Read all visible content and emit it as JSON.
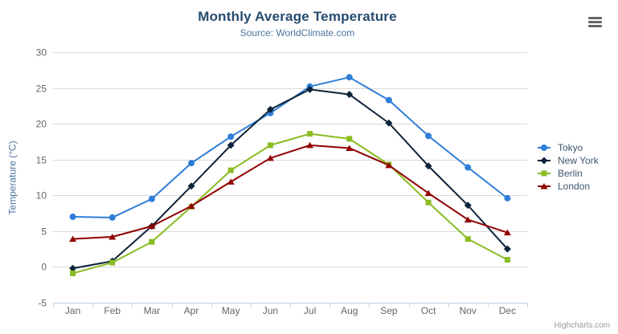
{
  "chart": {
    "credits": "Highcharts.com",
    "colors": {
      "title": "#274b6d",
      "subtitle": "#4d759e",
      "grid": "#d8d8d8",
      "axis_line": "#c0d0e0",
      "tick_label": "#666666",
      "legend_text": "#3e576f",
      "credits": "#999999",
      "export_icon": "#666666",
      "background": "#ffffff"
    }
  },
  "chart_data": {
    "type": "line",
    "title": "Monthly Average Temperature",
    "subtitle": "Source: WorldClimate.com",
    "xlabel": "",
    "ylabel": "Temperature (°C)",
    "ylim": [
      -5,
      30
    ],
    "ytick_step": 5,
    "grid": true,
    "legend_position": "right",
    "categories": [
      "Jan",
      "Feb",
      "Mar",
      "Apr",
      "May",
      "Jun",
      "Jul",
      "Aug",
      "Sep",
      "Oct",
      "Nov",
      "Dec"
    ],
    "series": [
      {
        "name": "Tokyo",
        "color": "#2f7ed8",
        "marker": "circle",
        "values": [
          7.0,
          6.9,
          9.5,
          14.5,
          18.2,
          21.5,
          25.2,
          26.5,
          23.3,
          18.3,
          13.9,
          9.6
        ]
      },
      {
        "name": "New York",
        "color": "#0d233a",
        "marker": "diamond",
        "values": [
          -0.2,
          0.8,
          5.7,
          11.3,
          17.0,
          22.0,
          24.8,
          24.1,
          20.1,
          14.1,
          8.6,
          2.5
        ]
      },
      {
        "name": "Berlin",
        "color": "#8bbc21",
        "marker": "square",
        "values": [
          -0.9,
          0.6,
          3.5,
          8.4,
          13.5,
          17.0,
          18.6,
          17.9,
          14.3,
          9.0,
          3.9,
          1.0
        ]
      },
      {
        "name": "London",
        "color": "#910000",
        "marker": "triangle",
        "values": [
          3.9,
          4.2,
          5.7,
          8.5,
          11.9,
          15.2,
          17.0,
          16.6,
          14.2,
          10.3,
          6.6,
          4.8
        ]
      }
    ]
  }
}
